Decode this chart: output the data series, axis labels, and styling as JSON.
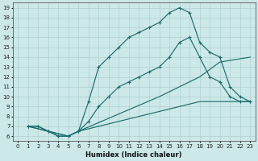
{
  "xlabel": "Humidex (Indice chaleur)",
  "bg_color": "#cce8e8",
  "line_color": "#1a6e6e",
  "grid_color": "#b0d0d0",
  "xlim": [
    -0.5,
    23.5
  ],
  "ylim": [
    5.5,
    19.5
  ],
  "yticks": [
    6,
    7,
    8,
    9,
    10,
    11,
    12,
    13,
    14,
    15,
    16,
    17,
    18,
    19
  ],
  "xticks": [
    0,
    1,
    2,
    3,
    4,
    5,
    6,
    7,
    8,
    9,
    10,
    11,
    12,
    13,
    14,
    15,
    16,
    17,
    18,
    19,
    20,
    21,
    22,
    23
  ],
  "line1_x": [
    1,
    2,
    3,
    4,
    5,
    6,
    7,
    8,
    9,
    10,
    11,
    12,
    13,
    14,
    15,
    16,
    17,
    18,
    19,
    20,
    21,
    22,
    23
  ],
  "line1_y": [
    7,
    7,
    6.5,
    6,
    6,
    6.5,
    9.5,
    13,
    14,
    15,
    16,
    16.5,
    17,
    17.5,
    18.5,
    19,
    18.5,
    15.5,
    14.5,
    14,
    11,
    10,
    9.5
  ],
  "line2_x": [
    1,
    2,
    3,
    4,
    5,
    6,
    7,
    8,
    9,
    10,
    11,
    12,
    13,
    14,
    15,
    16,
    17,
    18,
    19,
    20,
    21,
    22,
    23
  ],
  "line2_y": [
    7,
    7,
    6.5,
    6,
    6,
    6.5,
    7.5,
    9,
    10,
    11,
    11.5,
    12,
    12.5,
    13,
    14,
    15.5,
    16,
    14,
    12,
    11.5,
    10,
    9.5,
    9.5
  ],
  "line3_x": [
    1,
    5,
    6,
    14,
    18,
    20,
    23
  ],
  "line3_y": [
    7,
    6,
    6.5,
    10,
    12,
    13.5,
    14
  ],
  "line4_x": [
    1,
    5,
    6,
    14,
    18,
    20,
    23
  ],
  "line4_y": [
    7,
    6,
    6.5,
    8.5,
    9.5,
    9.5,
    9.5
  ]
}
